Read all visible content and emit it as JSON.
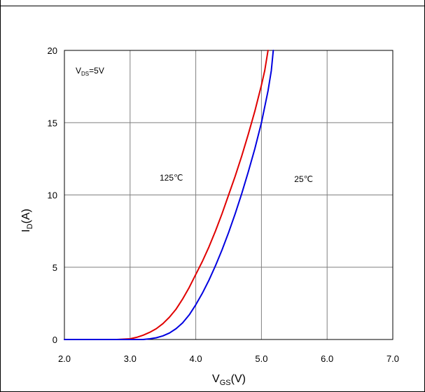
{
  "chart_data": {
    "type": "line",
    "xlabel": {
      "main": "V",
      "sub": "GS",
      "suffix": "(V)"
    },
    "ylabel": {
      "main": "I",
      "sub": "D",
      "suffix": "(A)"
    },
    "xlim": [
      2.0,
      7.0
    ],
    "ylim": [
      0,
      20
    ],
    "x_ticks": [
      2.0,
      3.0,
      4.0,
      5.0,
      6.0,
      7.0
    ],
    "x_tick_labels": [
      "2.0",
      "3.0",
      "4.0",
      "5.0",
      "6.0",
      "7.0"
    ],
    "y_ticks": [
      0,
      5,
      10,
      15,
      20
    ],
    "y_tick_labels": [
      "0",
      "5",
      "10",
      "15",
      "20"
    ],
    "grid": true,
    "legend": "none",
    "condition": {
      "main": "V",
      "sub": "DS",
      "suffix": "=5V"
    },
    "series": [
      {
        "name": "125℃",
        "color": "#e00000",
        "x": [
          2.0,
          2.8,
          3.0,
          3.1,
          3.2,
          3.3,
          3.4,
          3.5,
          3.6,
          3.7,
          3.8,
          3.9,
          4.0,
          4.1,
          4.2,
          4.3,
          4.4,
          4.5,
          4.6,
          4.7,
          4.8,
          4.9,
          5.0,
          5.05,
          5.1
        ],
        "y": [
          0,
          0,
          0.05,
          0.15,
          0.3,
          0.5,
          0.75,
          1.1,
          1.55,
          2.1,
          2.8,
          3.6,
          4.5,
          5.4,
          6.4,
          7.5,
          8.7,
          10.0,
          11.3,
          12.7,
          14.2,
          15.8,
          17.6,
          18.6,
          20.0
        ]
      },
      {
        "name": "25℃",
        "color": "#0000e0",
        "x": [
          2.0,
          3.2,
          3.3,
          3.4,
          3.5,
          3.6,
          3.7,
          3.8,
          3.9,
          4.0,
          4.1,
          4.2,
          4.3,
          4.4,
          4.5,
          4.6,
          4.7,
          4.8,
          4.9,
          5.0,
          5.1,
          5.15,
          5.18
        ],
        "y": [
          0,
          0,
          0.05,
          0.12,
          0.25,
          0.45,
          0.75,
          1.15,
          1.7,
          2.4,
          3.2,
          4.1,
          5.1,
          6.2,
          7.4,
          8.7,
          10.1,
          11.6,
          13.2,
          15.0,
          17.2,
          18.6,
          20.0
        ]
      }
    ],
    "annotations": [
      {
        "text": "125℃",
        "x": 3.45,
        "y": 11.0
      },
      {
        "text": "25℃",
        "x": 5.5,
        "y": 10.9
      }
    ]
  }
}
